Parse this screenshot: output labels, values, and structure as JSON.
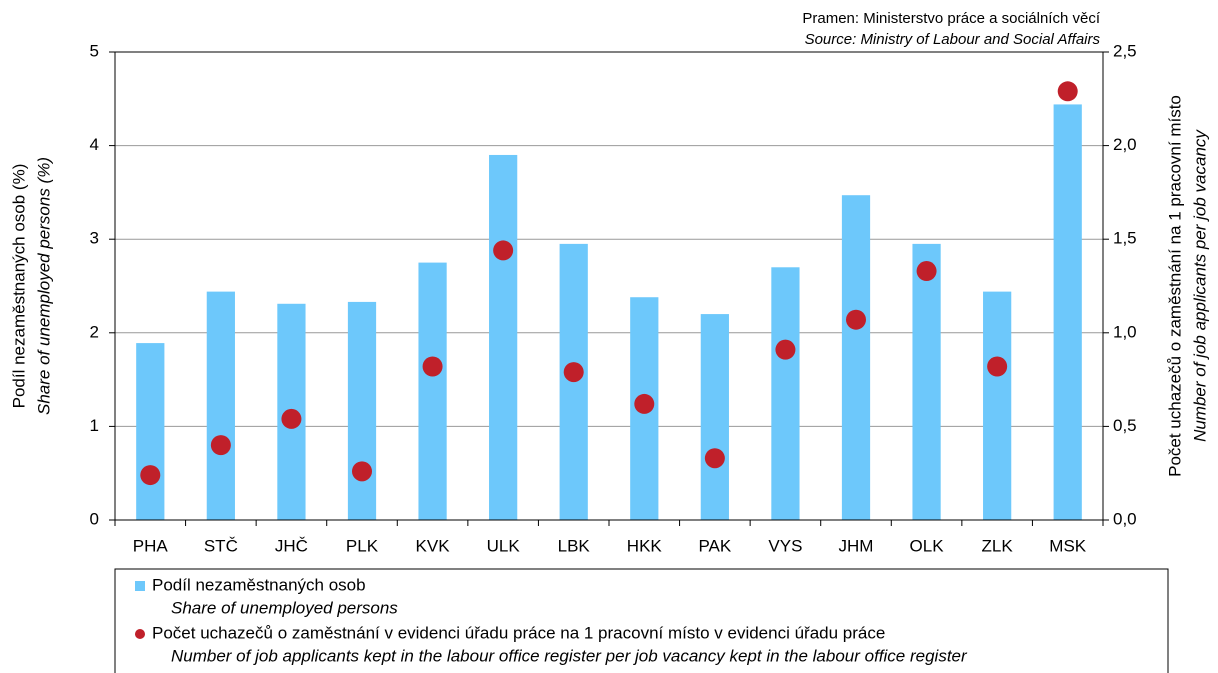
{
  "chart_data": {
    "type": "bar",
    "source": "Pramen: Ministerstvo práce a sociálních věcí",
    "source_en": "Source: Ministry of Labour and Social Affairs",
    "ylabel": "Podíl nezaměstnaných osob (%)",
    "ylabel_en": "Share of unemployed persons (%)",
    "y2label": "Počet uchazečů o zaměstnání na 1 pracovní  místo",
    "y2label_en": "Number of job applicants per job vacancy",
    "categories": [
      "PHA",
      "STČ",
      "JHČ",
      "PLK",
      "KVK",
      "ULK",
      "LBK",
      "HKK",
      "PAK",
      "VYS",
      "JHM",
      "OLK",
      "ZLK",
      "MSK"
    ],
    "series": [
      {
        "name": "Podíl nezaměstnaných osob",
        "name_en": "Share of unemployed persons",
        "type": "bar",
        "color": "#6dc8fb",
        "values": [
          1.89,
          2.44,
          2.31,
          2.33,
          2.75,
          3.9,
          2.95,
          2.38,
          2.2,
          2.7,
          3.47,
          2.95,
          2.44,
          4.44
        ]
      },
      {
        "name": "Počet uchazečů o zaměstnání v evidenci úřadu práce na 1 pracovní místo v evidenci úřadu práce",
        "name_en": "Number of job applicants kept in the labour office register per job vacancy kept in the labour office register",
        "type": "scatter",
        "color": "#c0202a",
        "axis": "y2",
        "values": [
          0.24,
          0.4,
          0.54,
          0.26,
          0.82,
          1.44,
          0.79,
          0.62,
          0.33,
          0.91,
          1.07,
          1.33,
          0.82,
          2.29
        ]
      }
    ],
    "ylim": [
      0,
      5
    ],
    "yticks": [
      0,
      1,
      2,
      3,
      4,
      5
    ],
    "y2lim": [
      0,
      2.5
    ],
    "y2ticks": [
      {
        "value": 0,
        "label": "0,0"
      },
      {
        "value": 0.5,
        "label": "0,5"
      },
      {
        "value": 1,
        "label": "1,0"
      },
      {
        "value": 1.5,
        "label": "1,5"
      },
      {
        "value": 2,
        "label": "2,0"
      },
      {
        "value": 2.5,
        "label": "2,5"
      }
    ],
    "grid": true
  }
}
